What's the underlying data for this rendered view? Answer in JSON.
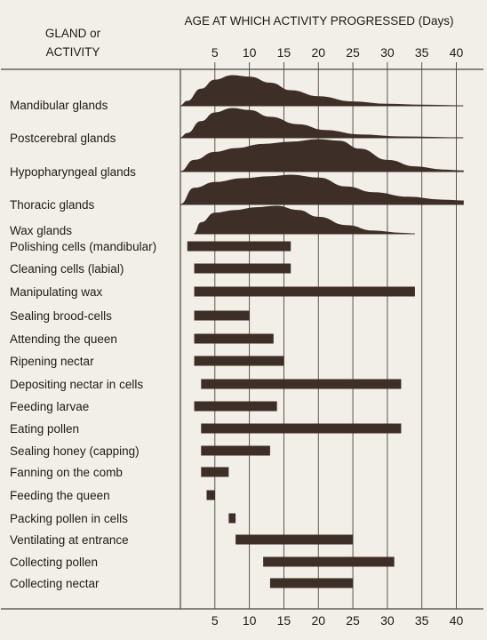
{
  "chart_data": {
    "type": "bar",
    "header_left_line1": "GLAND or",
    "header_left_line2": "ACTIVITY",
    "title": "AGE AT WHICH ACTIVITY PROGRESSED (Days)",
    "xticks": [
      5,
      10,
      15,
      20,
      25,
      30,
      35,
      40
    ],
    "xlim": [
      0,
      41
    ],
    "grid": true,
    "glands": [
      {
        "label": "Mandibular glands",
        "profile": [
          [
            0,
            0
          ],
          [
            1,
            0.15
          ],
          [
            3,
            0.55
          ],
          [
            5,
            0.85
          ],
          [
            7.5,
            1
          ],
          [
            10,
            0.95
          ],
          [
            13,
            0.75
          ],
          [
            16,
            0.5
          ],
          [
            20,
            0.3
          ],
          [
            25,
            0.13
          ],
          [
            30,
            0.05
          ],
          [
            35,
            0.02
          ],
          [
            41,
            0
          ]
        ]
      },
      {
        "label": "Postcerebral glands",
        "profile": [
          [
            0,
            0
          ],
          [
            1,
            0.15
          ],
          [
            3,
            0.55
          ],
          [
            5,
            0.85
          ],
          [
            7.5,
            1
          ],
          [
            10,
            0.93
          ],
          [
            13,
            0.7
          ],
          [
            17,
            0.45
          ],
          [
            21,
            0.25
          ],
          [
            26,
            0.1
          ],
          [
            32,
            0.03
          ],
          [
            41,
            0
          ]
        ]
      },
      {
        "label": "Hypopharyngeal glands",
        "profile": [
          [
            0,
            0
          ],
          [
            2,
            0.35
          ],
          [
            5,
            0.6
          ],
          [
            8,
            0.72
          ],
          [
            12,
            0.85
          ],
          [
            16,
            0.92
          ],
          [
            20,
            1
          ],
          [
            23,
            0.95
          ],
          [
            26,
            0.7
          ],
          [
            30,
            0.35
          ],
          [
            34,
            0.15
          ],
          [
            38,
            0.05
          ],
          [
            41,
            0.02
          ]
        ]
      },
      {
        "label": "Thoracic glands",
        "profile": [
          [
            0,
            0
          ],
          [
            2,
            0.55
          ],
          [
            5,
            0.75
          ],
          [
            9,
            0.88
          ],
          [
            13,
            0.95
          ],
          [
            16,
            1
          ],
          [
            20,
            0.9
          ],
          [
            24,
            0.6
          ],
          [
            28,
            0.4
          ],
          [
            33,
            0.25
          ],
          [
            38,
            0.15
          ],
          [
            41,
            0.12
          ]
        ]
      },
      {
        "label": "Wax glands",
        "profile": [
          [
            2,
            0
          ],
          [
            3,
            0.4
          ],
          [
            5,
            0.75
          ],
          [
            8,
            0.85
          ],
          [
            11,
            0.95
          ],
          [
            14,
            1
          ],
          [
            17,
            0.85
          ],
          [
            20,
            0.6
          ],
          [
            24,
            0.3
          ],
          [
            28,
            0.1
          ],
          [
            32,
            0.02
          ],
          [
            34,
            0
          ]
        ]
      }
    ],
    "activities": [
      {
        "label": "Polishing cells (mandibular)",
        "start": 1,
        "end": 16
      },
      {
        "label": "Cleaning cells (labial)",
        "start": 2,
        "end": 16
      },
      {
        "label": "Manipulating wax",
        "start": 2,
        "end": 34
      },
      {
        "label": "Sealing brood-cells",
        "start": 2,
        "end": 10
      },
      {
        "label": "Attending the queen",
        "start": 2,
        "end": 13.5
      },
      {
        "label": "Ripening nectar",
        "start": 2,
        "end": 15
      },
      {
        "label": "Depositing nectar in cells",
        "start": 3,
        "end": 32
      },
      {
        "label": "Feeding larvae",
        "start": 2,
        "end": 14
      },
      {
        "label": "Eating pollen",
        "start": 3,
        "end": 32
      },
      {
        "label": "Sealing honey (capping)",
        "start": 3,
        "end": 13
      },
      {
        "label": "Fanning on the comb",
        "start": 3,
        "end": 7
      },
      {
        "label": "Feeding the queen",
        "start": 3.8,
        "end": 5
      },
      {
        "label": "Packing pollen in cells",
        "start": 7,
        "end": 8
      },
      {
        "label": "Ventilating at entrance",
        "start": 8,
        "end": 25
      },
      {
        "label": "Collecting pollen",
        "start": 12,
        "end": 31
      },
      {
        "label": "Collecting nectar",
        "start": 13,
        "end": 25
      }
    ]
  },
  "colors": {
    "bar": "#3d2f28",
    "grid": "#4a4540",
    "background": "#f1efe8"
  }
}
